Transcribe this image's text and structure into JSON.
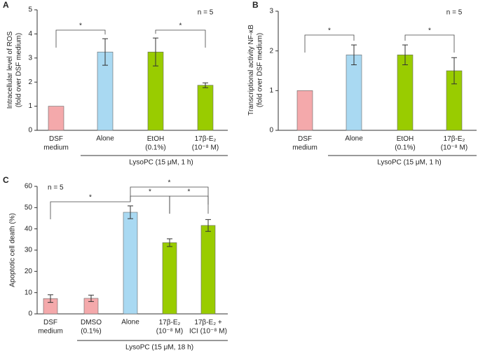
{
  "chart_data": [
    {
      "type": "bar",
      "panel": "A",
      "ylabel": "Intracellular level of ROS\n(fold over DSF medium)",
      "annotation": "n = 5",
      "categories": [
        "DSF\nmedium",
        "Alone",
        "EtOH\n(0.1%)",
        "17β-E₂\n(10⁻⁸ M)"
      ],
      "values": [
        1.0,
        3.25,
        3.25,
        1.87
      ],
      "errors": [
        0,
        0.55,
        0.58,
        0.1
      ],
      "colors": [
        "#f4a9ab",
        "#a9d9f2",
        "#99cc00",
        "#99cc00"
      ],
      "group_label": "LysoPC (15 μM, 1 h)",
      "significance": [
        "*",
        "*"
      ],
      "ylim": [
        0,
        5
      ],
      "yticks": [
        0,
        1,
        2,
        3,
        4,
        5
      ]
    },
    {
      "type": "bar",
      "panel": "B",
      "ylabel": "Transcriptional activity NF-κB\n(fold over DSF medium)",
      "annotation": "n = 5",
      "categories": [
        "DSF\nmedium",
        "Alone",
        "EtOH\n(0.1%)",
        "17β-E₂\n(10⁻⁸ M)"
      ],
      "values": [
        1.0,
        1.9,
        1.9,
        1.5
      ],
      "errors": [
        0,
        0.25,
        0.25,
        0.33
      ],
      "colors": [
        "#f4a9ab",
        "#a9d9f2",
        "#99cc00",
        "#99cc00"
      ],
      "group_label": "LysoPC (15 μM, 1 h)",
      "significance": [
        "*",
        "*"
      ],
      "ylim": [
        0,
        3
      ],
      "yticks": [
        0,
        1,
        2,
        3
      ]
    },
    {
      "type": "bar",
      "panel": "C",
      "ylabel": "Apoptotic cell death (%)",
      "annotation": "n = 5",
      "categories": [
        "DSF\nmedium",
        "DMSO\n(0.1%)",
        "Alone",
        "17β-E₂\n(10⁻⁸ M)",
        "17β-E₂ +\nICI (10⁻⁸ M)"
      ],
      "values": [
        7.2,
        7.3,
        47.8,
        33.5,
        41.6
      ],
      "errors": [
        1.8,
        1.5,
        3.0,
        1.8,
        2.8
      ],
      "colors": [
        "#f4a9ab",
        "#f4a9ab",
        "#a9d9f2",
        "#99cc00",
        "#99cc00"
      ],
      "group_label": "LysoPC (15 μM, 18 h)",
      "significance": [
        "*",
        "*",
        "*",
        "*"
      ],
      "ylim": [
        0,
        60
      ],
      "yticks": [
        0,
        10,
        20,
        30,
        40,
        50,
        60
      ]
    }
  ]
}
